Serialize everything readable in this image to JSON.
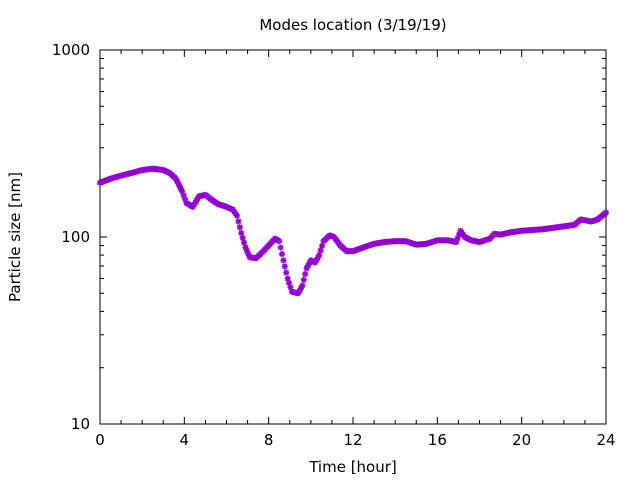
{
  "chart_data": {
    "type": "scatter",
    "title": "Modes location (3/19/19)",
    "xlabel": "Time [hour]",
    "ylabel": "Particle size [nm]",
    "xlim": [
      0,
      24
    ],
    "ylim": [
      10,
      1000
    ],
    "yscale": "log",
    "grid": false,
    "legend": "none",
    "marker_color": "#9400d3",
    "x_ticks": [
      0,
      4,
      8,
      12,
      16,
      20,
      24
    ],
    "x_tick_labels": [
      "0",
      "4",
      "8",
      "12",
      "16",
      "20",
      "24"
    ],
    "y_ticks": [
      10,
      100,
      1000
    ],
    "y_tick_labels": [
      "10",
      "100",
      "1000"
    ],
    "series": [
      {
        "points": [
          [
            0.0,
            195
          ],
          [
            0.5,
            205
          ],
          [
            1.0,
            213
          ],
          [
            1.5,
            220
          ],
          [
            2.0,
            228
          ],
          [
            2.5,
            232
          ],
          [
            3.0,
            228
          ],
          [
            3.3,
            220
          ],
          [
            3.6,
            205
          ],
          [
            3.9,
            175
          ],
          [
            4.1,
            152
          ],
          [
            4.4,
            145
          ],
          [
            4.7,
            165
          ],
          [
            5.0,
            168
          ],
          [
            5.3,
            158
          ],
          [
            5.6,
            150
          ],
          [
            6.0,
            145
          ],
          [
            6.3,
            140
          ],
          [
            6.5,
            130
          ],
          [
            6.7,
            105
          ],
          [
            6.9,
            88
          ],
          [
            7.1,
            78
          ],
          [
            7.4,
            77
          ],
          [
            7.7,
            83
          ],
          [
            8.0,
            90
          ],
          [
            8.3,
            98
          ],
          [
            8.5,
            95
          ],
          [
            8.7,
            75
          ],
          [
            8.9,
            60
          ],
          [
            9.1,
            51
          ],
          [
            9.4,
            50
          ],
          [
            9.6,
            55
          ],
          [
            9.8,
            68
          ],
          [
            10.0,
            75
          ],
          [
            10.2,
            73
          ],
          [
            10.4,
            80
          ],
          [
            10.6,
            95
          ],
          [
            10.9,
            102
          ],
          [
            11.1,
            100
          ],
          [
            11.4,
            90
          ],
          [
            11.7,
            84
          ],
          [
            12.0,
            84
          ],
          [
            12.5,
            88
          ],
          [
            13.0,
            92
          ],
          [
            13.5,
            94
          ],
          [
            14.0,
            95
          ],
          [
            14.5,
            95
          ],
          [
            15.0,
            91
          ],
          [
            15.5,
            92
          ],
          [
            16.0,
            96
          ],
          [
            16.5,
            96
          ],
          [
            16.9,
            94
          ],
          [
            17.1,
            108
          ],
          [
            17.3,
            100
          ],
          [
            17.6,
            96
          ],
          [
            18.0,
            94
          ],
          [
            18.5,
            98
          ],
          [
            18.7,
            104
          ],
          [
            19.0,
            103
          ],
          [
            19.5,
            106
          ],
          [
            20.0,
            108
          ],
          [
            20.5,
            109
          ],
          [
            21.0,
            110
          ],
          [
            21.5,
            112
          ],
          [
            22.0,
            114
          ],
          [
            22.5,
            116
          ],
          [
            22.8,
            124
          ],
          [
            23.0,
            123
          ],
          [
            23.3,
            121
          ],
          [
            23.6,
            124
          ],
          [
            24.0,
            135
          ]
        ]
      }
    ]
  }
}
